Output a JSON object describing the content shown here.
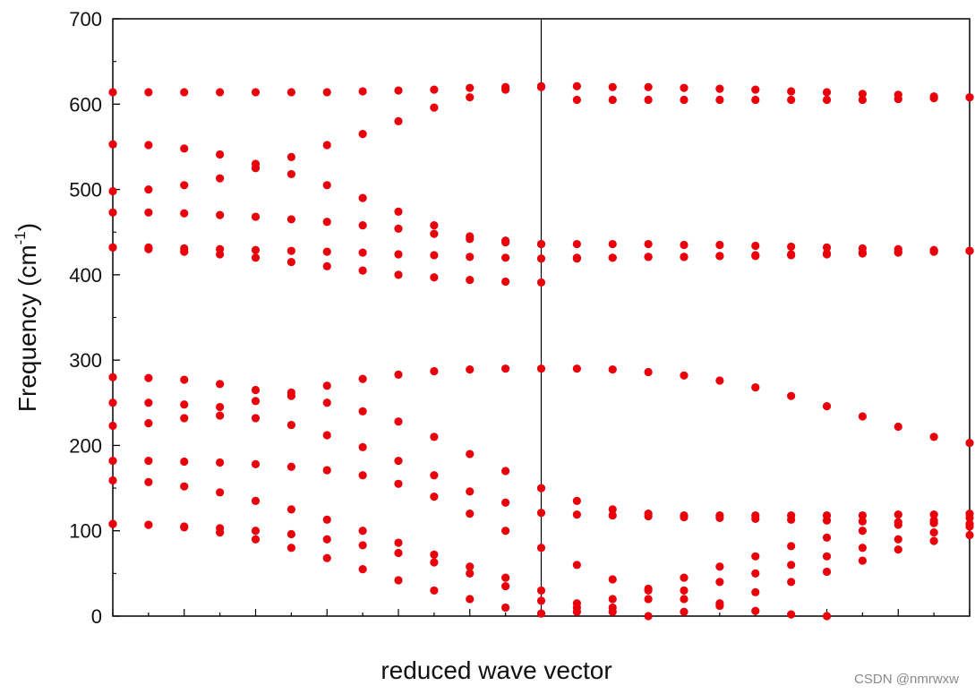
{
  "chart_data": {
    "type": "scatter",
    "xlabel": "reduced wave vector",
    "ylabel": "Frequency (cm",
    "ylabel_sup": "-1",
    "ylabel_suffix": ")",
    "ylim": [
      0,
      700
    ],
    "xlim": [
      0,
      1.2
    ],
    "yticks": [
      0,
      100,
      200,
      300,
      400,
      500,
      600,
      700
    ],
    "ytick_labels": [
      "0",
      "100",
      "200",
      "300",
      "400",
      "500",
      "600",
      "700"
    ],
    "x_divider": 0.6,
    "grid": false,
    "legend": "none",
    "marker_color": "#e8000b",
    "x": [
      0,
      0.05,
      0.1,
      0.15,
      0.2,
      0.25,
      0.3,
      0.35,
      0.4,
      0.45,
      0.5,
      0.55,
      0.6,
      0.65,
      0.7,
      0.75,
      0.8,
      0.85,
      0.9,
      0.95,
      1.0,
      1.05,
      1.1,
      1.15,
      1.2
    ],
    "series": [
      {
        "values": [
          614,
          614,
          614,
          614,
          614,
          614,
          614,
          615,
          616,
          617,
          619,
          620,
          621,
          621,
          620,
          620,
          619,
          618,
          617,
          615,
          614,
          612,
          611,
          609,
          608
        ]
      },
      {
        "values": [
          498,
          500,
          505,
          513,
          525,
          538,
          552,
          565,
          580,
          596,
          608,
          617,
          620,
          605,
          605,
          605,
          605,
          605,
          605,
          605,
          605,
          605,
          606,
          607,
          608
        ]
      },
      {
        "values": [
          553,
          552,
          548,
          541,
          530,
          518,
          505,
          490,
          474,
          458,
          445,
          440,
          436,
          436,
          436,
          436,
          435,
          435,
          434,
          433,
          432,
          431,
          430,
          429,
          428
        ]
      },
      {
        "values": [
          473,
          473,
          472,
          470,
          468,
          465,
          462,
          458,
          454,
          448,
          442,
          438,
          436,
          420,
          420,
          421,
          421,
          422,
          422,
          423,
          424,
          425,
          426,
          427,
          428
        ]
      },
      {
        "values": [
          432,
          432,
          431,
          430,
          429,
          428,
          427,
          426,
          424,
          423,
          421,
          420,
          419,
          419,
          420,
          421,
          421,
          422,
          423,
          424,
          425,
          426,
          427,
          428,
          428
        ]
      },
      {
        "values": [
          432,
          430,
          427,
          424,
          420,
          415,
          410,
          405,
          400,
          397,
          394,
          392,
          391
        ]
      },
      {
        "values": [
          280,
          279,
          277,
          272,
          265,
          258,
          250,
          240,
          228,
          210,
          190,
          170,
          150,
          135,
          125,
          120,
          118,
          118,
          118,
          118,
          118,
          118,
          119,
          119,
          120
        ]
      },
      {
        "values": [
          250,
          250,
          248,
          245,
          252,
          262,
          270,
          278,
          283,
          287,
          289,
          290,
          290,
          290,
          289,
          286,
          282,
          276,
          268,
          258,
          246,
          234,
          222,
          210,
          203
        ]
      },
      {
        "values": [
          223,
          226,
          232,
          235,
          232,
          224,
          212,
          198,
          182,
          165,
          146,
          133,
          121,
          119,
          118,
          117,
          116,
          115,
          114,
          113,
          112,
          111,
          110,
          109,
          108
        ]
      },
      {
        "values": [
          182,
          182,
          181,
          180,
          178,
          175,
          171,
          165,
          155,
          140,
          120,
          100,
          80,
          60,
          43,
          30,
          20,
          12,
          6,
          2,
          0
        ]
      },
      {
        "values": [
          159,
          157,
          152,
          145,
          135,
          125,
          113,
          100,
          86,
          72,
          58,
          45,
          30,
          15,
          5,
          0,
          5,
          15,
          28,
          40,
          52,
          65,
          78,
          88,
          95
        ]
      },
      {
        "values": [
          108,
          107,
          105,
          103,
          100,
          96,
          90,
          83,
          74,
          63,
          50,
          35,
          18,
          5,
          10,
          20,
          30,
          40,
          50,
          60,
          70,
          80,
          90,
          98,
          105
        ]
      },
      {
        "values": [
          108,
          107,
          104,
          98,
          90,
          80,
          68,
          55,
          42,
          30,
          20,
          10,
          3,
          10,
          20,
          32,
          45,
          58,
          70,
          82,
          92,
          100,
          107,
          112,
          115
        ]
      }
    ]
  },
  "watermark": "CSDN @nmrwxw"
}
